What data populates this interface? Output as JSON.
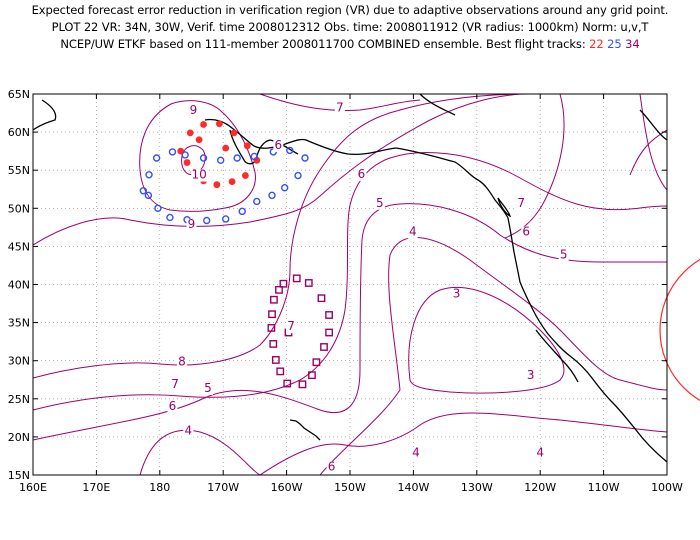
{
  "header": {
    "line1": "Expected forecast error reduction in verification region (VR) due to adaptive observations around any grid point.",
    "line2": "PLOT 22 VR: 34N, 30W, Verif. time 2008012312 Obs. time: 2008011912 (VR radius: 1000km) Norm: u,v,T",
    "line3_prefix": "NCEP/UW ETKF based on 111-member 2008011700 COMBINED ensemble.  Best flight tracks:",
    "track_22": "22",
    "track_25": "25",
    "track_34": "34"
  },
  "colors": {
    "contour": "#a0006e",
    "track_22": "#ff2a2a",
    "track_25": "#3050ff",
    "track_34": "#9a006a",
    "verification_circle": "#ff2a2a",
    "coast": "#000000"
  },
  "axes": {
    "lat_labels": [
      "65N",
      "60N",
      "55N",
      "50N",
      "45N",
      "40N",
      "35N",
      "30N",
      "25N",
      "20N",
      "15N"
    ],
    "lon_labels": [
      "160E",
      "170E",
      "180",
      "170W",
      "160W",
      "150W",
      "140W",
      "130W",
      "120W",
      "110W",
      "100W"
    ]
  },
  "contour_labels": [
    {
      "text": "9",
      "lon": -174.7,
      "lat": 62.4
    },
    {
      "text": "10",
      "lon": -173.8,
      "lat": 53.9
    },
    {
      "text": "9",
      "lon": -175.0,
      "lat": 47.4
    },
    {
      "text": "7",
      "lon": -151.6,
      "lat": 62.7
    },
    {
      "text": "6",
      "lon": -148.2,
      "lat": 54.0
    },
    {
      "text": "5",
      "lon": -145.3,
      "lat": 50.2
    },
    {
      "text": "4",
      "lon": -140.1,
      "lat": 46.4
    },
    {
      "text": "3",
      "lon": -133.2,
      "lat": 38.3
    },
    {
      "text": "7",
      "lon": -123.0,
      "lat": 50.2
    },
    {
      "text": "6",
      "lon": -122.2,
      "lat": 46.4
    },
    {
      "text": "5",
      "lon": -116.3,
      "lat": 43.4
    },
    {
      "text": "3",
      "lon": -121.5,
      "lat": 27.6
    },
    {
      "text": "4",
      "lon": -120.0,
      "lat": 17.4
    },
    {
      "text": "4",
      "lon": -139.6,
      "lat": 17.4
    },
    {
      "text": "6",
      "lon": -152.9,
      "lat": 15.6
    },
    {
      "text": "7",
      "lon": -159.3,
      "lat": 34.0
    },
    {
      "text": "4",
      "lon": -175.5,
      "lat": 20.3
    },
    {
      "text": "5",
      "lon": -172.4,
      "lat": 25.9
    },
    {
      "text": "6",
      "lon": -178.0,
      "lat": 23.5
    },
    {
      "text": "7",
      "lon": -177.6,
      "lat": 26.4
    },
    {
      "text": "8",
      "lon": -176.5,
      "lat": 29.4
    },
    {
      "text": "6",
      "lon": -161.3,
      "lat": 57.8
    }
  ],
  "tracks": {
    "track_22_points": [
      [
        -176.7,
        57.5
      ],
      [
        -175.2,
        59.9
      ],
      [
        -173.1,
        61.0
      ],
      [
        -170.6,
        61.1
      ],
      [
        -168.3,
        59.9
      ],
      [
        -166.2,
        58.2
      ],
      [
        -164.7,
        56.3
      ],
      [
        -166.5,
        54.3
      ],
      [
        -168.6,
        53.5
      ],
      [
        -171.0,
        53.1
      ],
      [
        -173.1,
        53.6
      ],
      [
        -174.6,
        54.7
      ],
      [
        -175.7,
        56.0
      ],
      [
        -173.8,
        59.0
      ],
      [
        -169.6,
        57.9
      ]
    ],
    "track_25_points": [
      [
        -182.6,
        52.3
      ],
      [
        -181.7,
        54.4
      ],
      [
        -180.5,
        56.6
      ],
      [
        -178.0,
        57.4
      ],
      [
        -176.0,
        57.0
      ],
      [
        -173.1,
        56.6
      ],
      [
        -170.4,
        56.3
      ],
      [
        -167.8,
        56.6
      ],
      [
        -165.1,
        56.8
      ],
      [
        -162.1,
        57.4
      ],
      [
        -159.5,
        57.6
      ],
      [
        -157.1,
        56.6
      ],
      [
        -158.2,
        54.3
      ],
      [
        -160.3,
        52.7
      ],
      [
        -162.3,
        51.7
      ],
      [
        -164.7,
        50.9
      ],
      [
        -167.0,
        49.6
      ],
      [
        -169.6,
        48.6
      ],
      [
        -172.6,
        48.4
      ],
      [
        -175.7,
        48.5
      ],
      [
        -178.4,
        48.8
      ],
      [
        -180.3,
        50.0
      ],
      [
        -181.8,
        51.7
      ]
    ],
    "track_34_points": [
      [
        -160.5,
        40.1
      ],
      [
        -158.4,
        40.8
      ],
      [
        -156.5,
        40.2
      ],
      [
        -154.5,
        38.2
      ],
      [
        -153.3,
        36.0
      ],
      [
        -153.3,
        33.7
      ],
      [
        -154.1,
        31.8
      ],
      [
        -155.3,
        29.8
      ],
      [
        -156.0,
        28.1
      ],
      [
        -157.5,
        26.9
      ],
      [
        -159.9,
        27.0
      ],
      [
        -161.0,
        28.6
      ],
      [
        -161.7,
        30.1
      ],
      [
        -162.1,
        32.2
      ],
      [
        -162.4,
        34.3
      ],
      [
        -162.3,
        36.1
      ],
      [
        -162.0,
        38.0
      ],
      [
        -161.2,
        39.3
      ],
      [
        -159.7,
        33.7
      ]
    ]
  }
}
